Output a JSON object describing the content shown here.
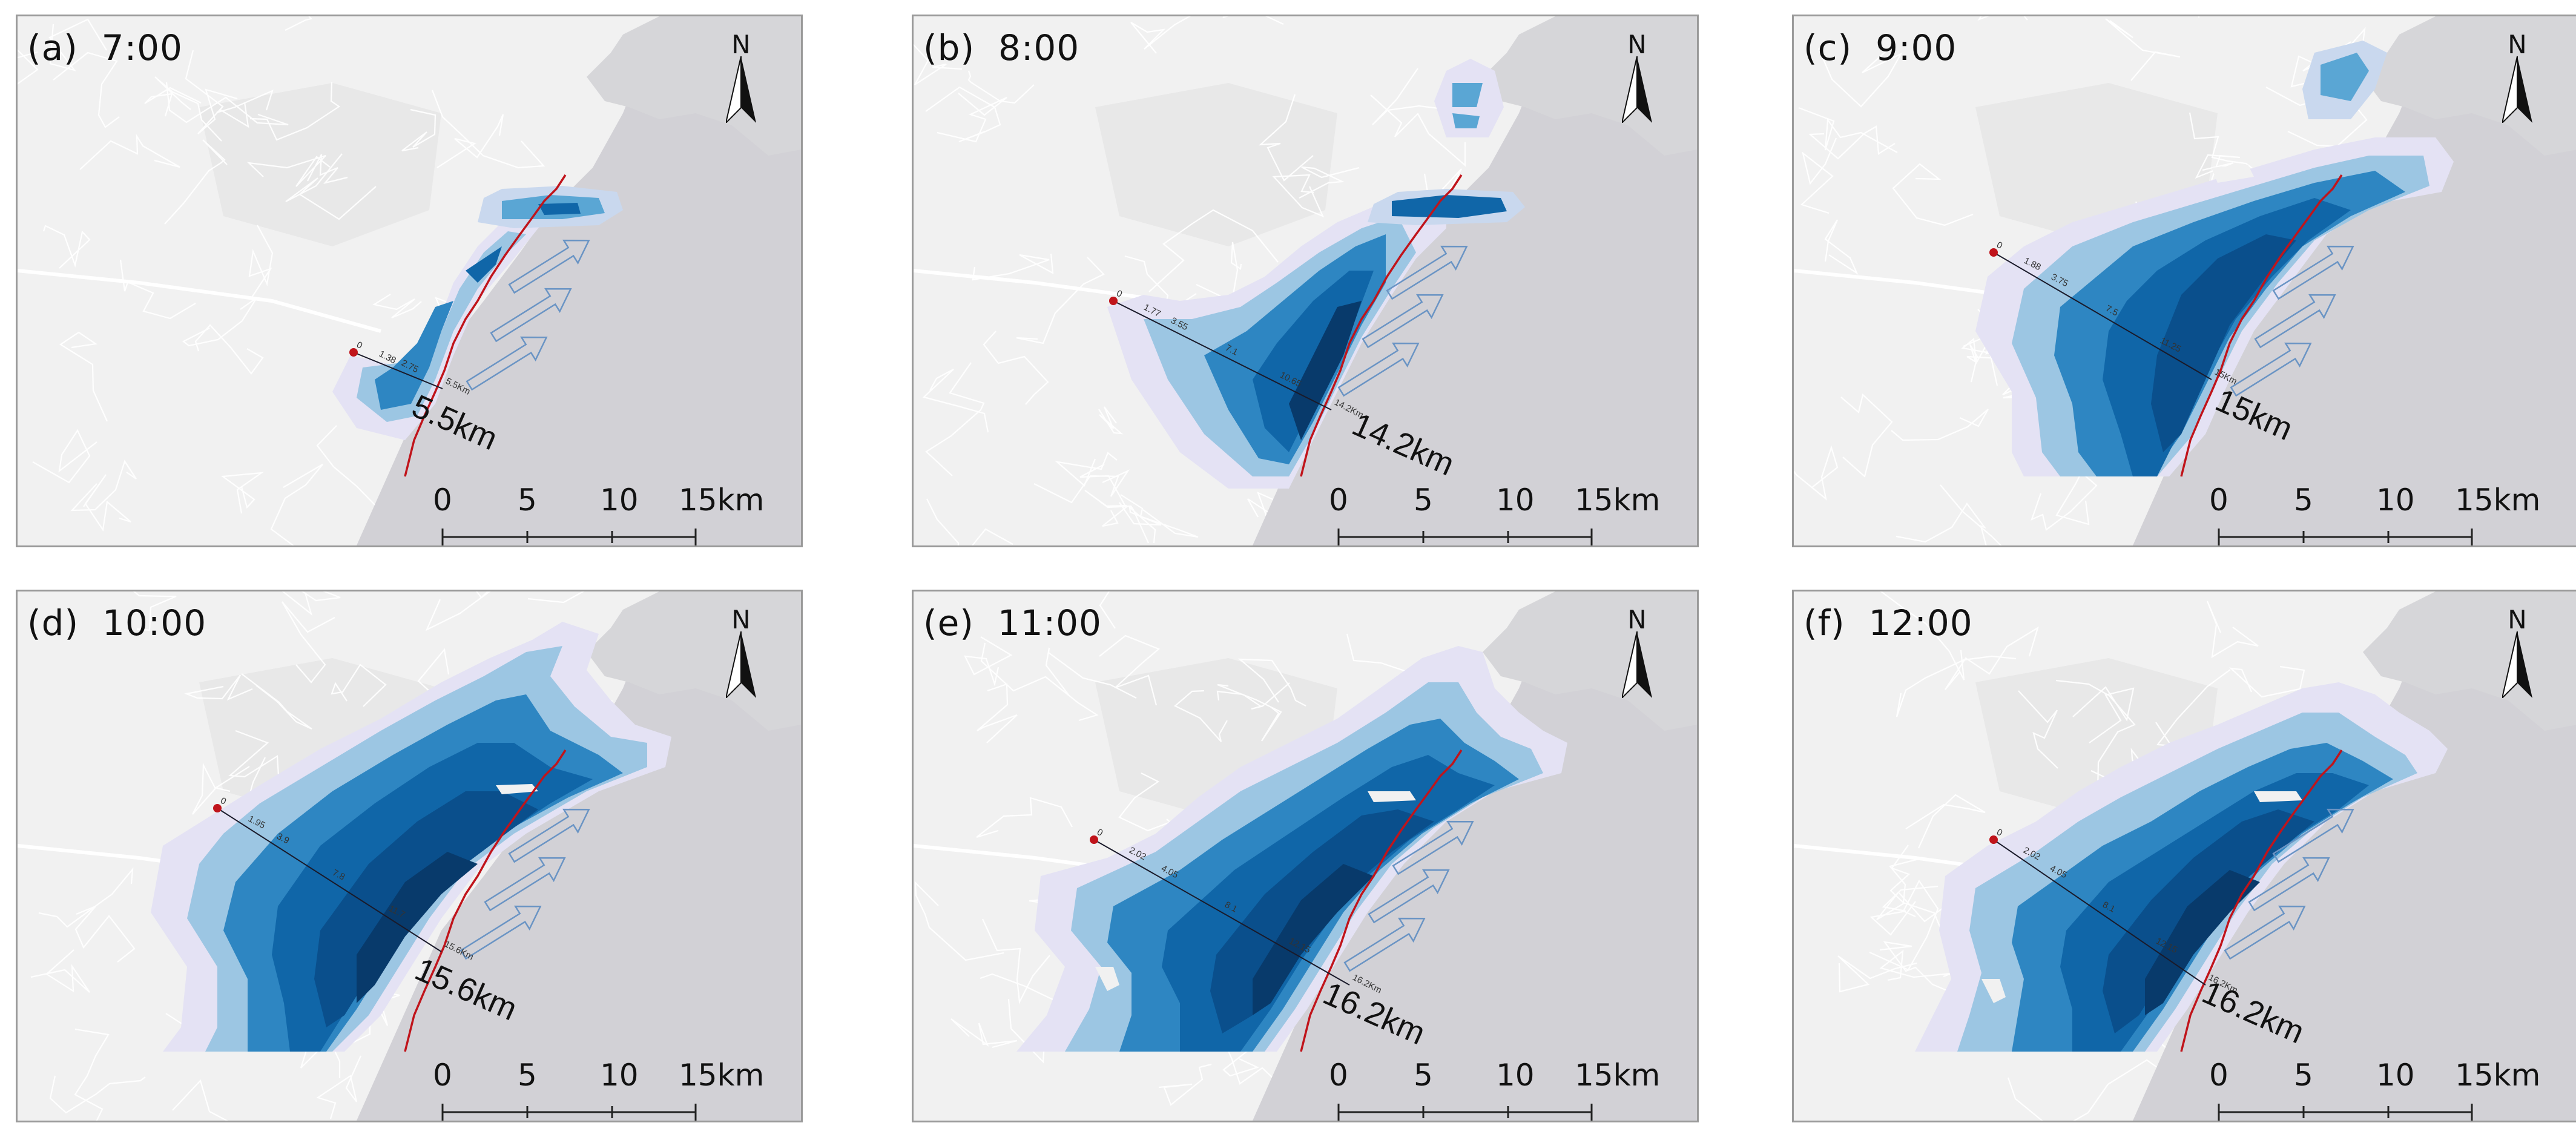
{
  "panels": [
    {
      "id": "a",
      "label": "(a)  7:00",
      "distance": "5.5km",
      "transect_ticks": [
        "0",
        "1.38",
        "2.75",
        "5.5Km"
      ]
    },
    {
      "id": "b",
      "label": "(b)  8:00",
      "distance": "14.2km",
      "transect_ticks": [
        "0",
        "1.77",
        "3.55",
        "7.1",
        "10.65",
        "14.2Km"
      ]
    },
    {
      "id": "c",
      "label": "(c)  9:00",
      "distance": "15km",
      "transect_ticks": [
        "0",
        "1.88",
        "3.75",
        "7.5",
        "11.25",
        "15Km"
      ]
    },
    {
      "id": "d",
      "label": "(d)  10:00",
      "distance": "15.6km",
      "transect_ticks": [
        "0",
        "1.95",
        "3.9",
        "7.8",
        "11.7",
        "15.6Km"
      ]
    },
    {
      "id": "e",
      "label": "(e)  11:00",
      "distance": "16.2km",
      "transect_ticks": [
        "0",
        "2.02",
        "4.05",
        "8.1",
        "12.15",
        "16.2Km"
      ]
    },
    {
      "id": "f",
      "label": "(f)  12:00",
      "distance": "16.2km",
      "transect_ticks": [
        "0",
        "2.02",
        "4.05",
        "8.1",
        "12.15",
        "16.2Km"
      ]
    }
  ],
  "north_label": "N",
  "scale_bar": {
    "labels": [
      "0",
      "5",
      "10",
      "15km"
    ]
  },
  "colors": {
    "land": "#f1f1f1",
    "sea": "#d2d1d6",
    "roads": "#ffffff",
    "coastline": "#c0141b",
    "transect": "#1a1a2a",
    "arrow": "#6a94c4",
    "plume_levels": [
      "#e4e2f4",
      "#c9d8ee",
      "#9cc6e3",
      "#5aa6d4",
      "#2e86c2",
      "#1066a8",
      "#0a4f8c",
      "#083a6b"
    ]
  }
}
